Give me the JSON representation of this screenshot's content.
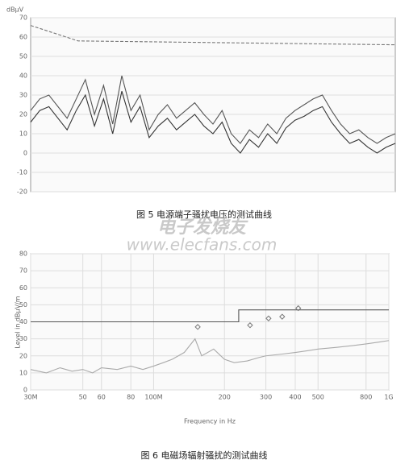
{
  "chart_data": [
    {
      "type": "line",
      "y_unit": "dBµV",
      "x": [
        0,
        2.5,
        5,
        7.5,
        10,
        12.5,
        15,
        17.5,
        20,
        22.5,
        25,
        27.5,
        30,
        32.5,
        35,
        37.5,
        40,
        42.5,
        45,
        47.5,
        50,
        52.5,
        55,
        57.5,
        60,
        62.5,
        65,
        67.5,
        70,
        72.5,
        75,
        77.5,
        80,
        82.5,
        85,
        87.5,
        90,
        92.5,
        95,
        97.5,
        100
      ],
      "xlim": [
        0,
        100
      ],
      "xlog": false,
      "ylim": [
        -20,
        70
      ],
      "yticks": [
        -20,
        -10,
        0,
        10,
        20,
        30,
        40,
        50,
        60,
        70
      ],
      "grid": true,
      "series": [
        {
          "color": "#777777",
          "dash": true,
          "x": [
            0,
            13,
            100
          ],
          "values": [
            66,
            58,
            56
          ]
        },
        {
          "color": "#555555",
          "values": [
            22,
            28,
            30,
            24,
            18,
            28,
            38,
            20,
            35,
            15,
            40,
            22,
            30,
            12,
            20,
            25,
            18,
            22,
            26,
            20,
            15,
            22,
            10,
            5,
            12,
            8,
            15,
            10,
            18,
            22,
            25,
            28,
            30,
            22,
            15,
            10,
            12,
            8,
            5,
            8,
            10
          ]
        },
        {
          "color": "#333333",
          "values": [
            16,
            22,
            24,
            18,
            12,
            22,
            30,
            14,
            28,
            10,
            32,
            16,
            24,
            8,
            14,
            18,
            12,
            16,
            20,
            14,
            10,
            16,
            5,
            0,
            7,
            3,
            10,
            5,
            13,
            17,
            19,
            22,
            24,
            16,
            10,
            5,
            7,
            3,
            0,
            3,
            5
          ]
        }
      ]
    },
    {
      "type": "line",
      "xlog": true,
      "xlim": [
        30,
        1000
      ],
      "ylim": [
        0,
        80
      ],
      "xticks": [
        {
          "value": 30,
          "label": "30M"
        },
        50,
        60,
        80,
        {
          "value": 100,
          "label": "100M"
        },
        200,
        300,
        400,
        500,
        800,
        {
          "value": 1000,
          "label": "1G"
        }
      ],
      "yticks": [
        0,
        10,
        20,
        30,
        40,
        50,
        60,
        70,
        80
      ],
      "grid": true,
      "x_label": "Frequency in Hz",
      "y_label": "Level in dBµV/m",
      "series": [
        {
          "color": "#555555",
          "x": [
            30,
            230,
            230,
            1000
          ],
          "values": [
            40,
            40,
            47,
            47
          ]
        },
        {
          "color": "#aaaaaa",
          "x": [
            30,
            35,
            40,
            45,
            50,
            55,
            60,
            70,
            80,
            90,
            100,
            110,
            120,
            135,
            150,
            160,
            180,
            200,
            220,
            250,
            280,
            300,
            350,
            400,
            450,
            500,
            600,
            700,
            800,
            900,
            1000
          ],
          "values": [
            12,
            10,
            13,
            11,
            12,
            10,
            13,
            12,
            14,
            12,
            14,
            16,
            18,
            22,
            30,
            20,
            24,
            18,
            16,
            17,
            19,
            20,
            21,
            22,
            23,
            24,
            25,
            26,
            27,
            28,
            29
          ]
        },
        {
          "color": "#777777",
          "marker": "diamond",
          "x": [
            154,
            257,
            308,
            352,
            412
          ],
          "values": [
            37,
            38,
            42,
            43,
            48
          ]
        }
      ]
    }
  ],
  "captions": [
    "图 5   电源端子骚扰电压的测试曲线",
    "图 6   电磁场辐射骚扰的测试曲线"
  ],
  "watermark": {
    "title": "电子发烧友",
    "url": "www.elecfans.com"
  }
}
